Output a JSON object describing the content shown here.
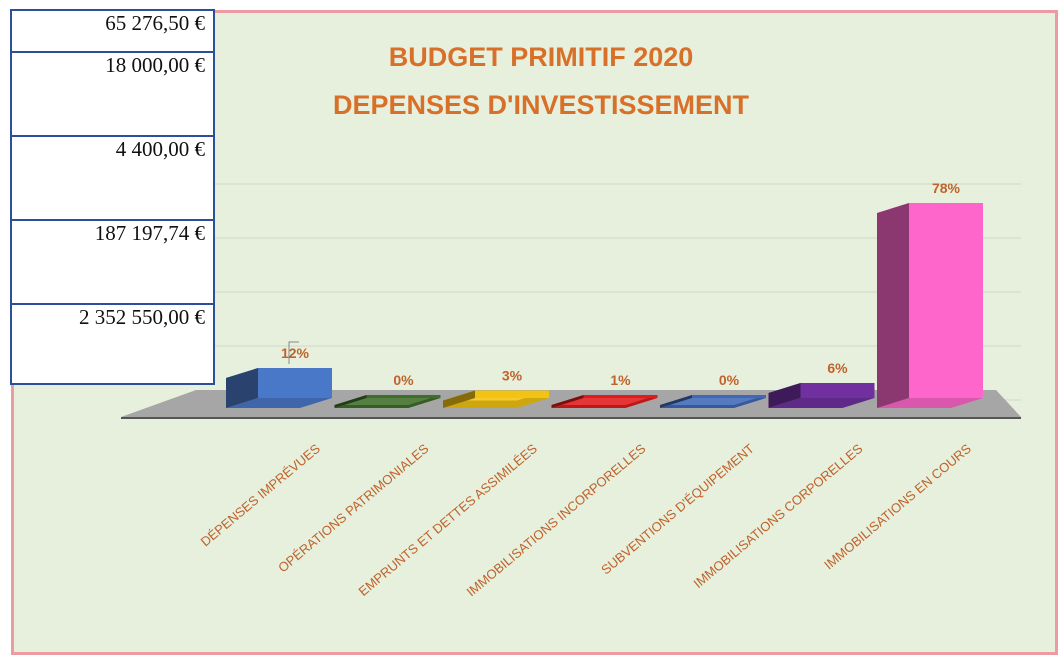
{
  "table": {
    "rows": [
      "65 276,50 €",
      "18 000,00 €",
      "4 400,00 €",
      "187 197,74 €",
      "2 352 550,00 €"
    ]
  },
  "chart_data": {
    "type": "bar",
    "title": [
      "BUDGET PRIMITIF 2020",
      "DEPENSES D'INVESTISSEMENT"
    ],
    "categories": [
      "DÉPENSES IMPRÉVUES",
      "OPÉRATIONS PATRIMONIALES",
      "EMPRUNTS ET DETTES ASSIMILÉES",
      "IMMOBILISATIONS INCORPORELLES",
      "SUBVENTIONS D'ÉQUIPEMENT",
      "IMMOBILISATIONS CORPORELLES",
      "IMMOBILISATIONS EN COURS"
    ],
    "values": [
      12,
      0,
      3,
      1,
      0,
      6,
      78
    ],
    "labels": [
      "12%",
      "0%",
      "3%",
      "1%",
      "0%",
      "6%",
      "78%"
    ],
    "colors": [
      "#4a78c8",
      "#3f6e2a",
      "#f2c312",
      "#e01b1b",
      "#3f68b7",
      "#7030a0",
      "#ff66cc"
    ],
    "ylim": [
      0,
      80
    ],
    "grid": true
  }
}
